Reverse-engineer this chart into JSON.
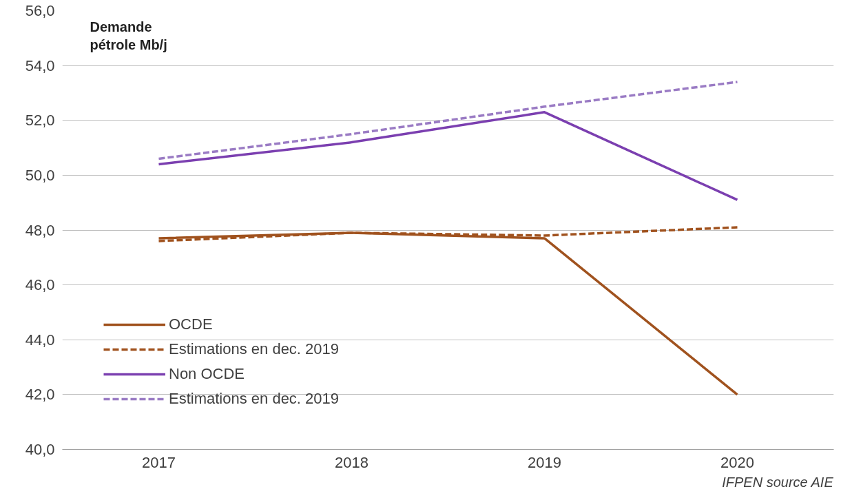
{
  "chart_data": {
    "type": "line",
    "ylabel": "Demande pétrole Mb/j",
    "categories": [
      "2017",
      "2018",
      "2019",
      "2020"
    ],
    "series": [
      {
        "name": "OCDE",
        "color": "#a0521e",
        "values": [
          47.7,
          47.9,
          47.7,
          42.0
        ],
        "line_style": "solid"
      },
      {
        "name": "Estimations en dec. 2019",
        "color": "#a0521e",
        "values": [
          47.6,
          47.9,
          47.8,
          48.1
        ],
        "line_style": "dashed"
      },
      {
        "name": "Non OCDE",
        "color": "#7b3fb0",
        "values": [
          50.4,
          51.2,
          52.3,
          49.1
        ],
        "line_style": "solid"
      },
      {
        "name": "Estimations en dec. 2019",
        "color": "#9a7bc4",
        "values": [
          50.6,
          51.5,
          52.5,
          53.4
        ],
        "line_style": "dashed"
      }
    ],
    "ylim": [
      40,
      56
    ],
    "yticks": [
      {
        "value": 40,
        "label": "40,0"
      },
      {
        "value": 42,
        "label": "42,0"
      },
      {
        "value": 44,
        "label": "44,0"
      },
      {
        "value": 46,
        "label": "46,0"
      },
      {
        "value": 48,
        "label": "48,0"
      },
      {
        "value": 50,
        "label": "50,0"
      },
      {
        "value": 52,
        "label": "52,0"
      },
      {
        "value": 54,
        "label": "54,0"
      },
      {
        "value": 56,
        "label": "56,0"
      }
    ],
    "grid": "y",
    "legend": "bottom left",
    "marker": "none",
    "annotations": [
      "IFPEN source AIE"
    ]
  }
}
